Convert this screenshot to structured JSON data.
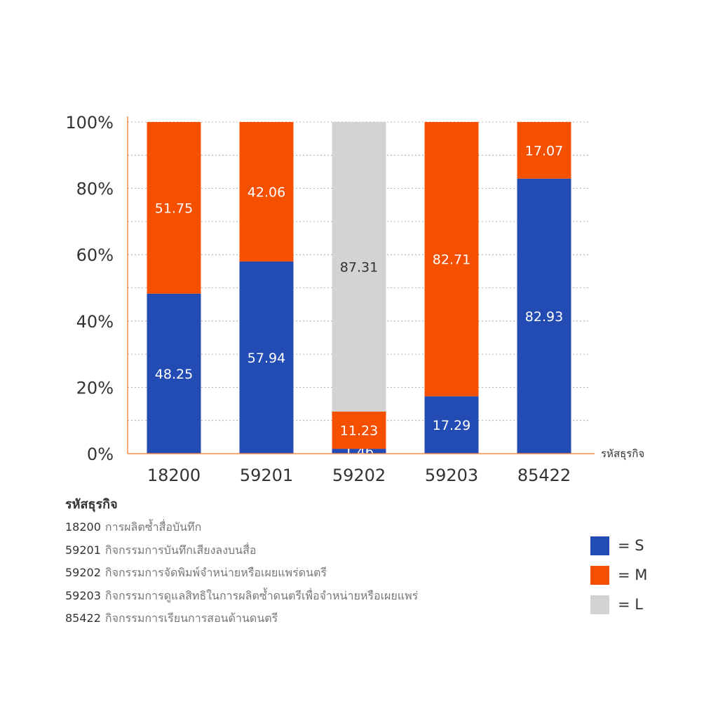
{
  "chart_data": {
    "type": "bar",
    "stacked": true,
    "categories": [
      "18200",
      "59201",
      "59202",
      "59203",
      "85422"
    ],
    "series": [
      {
        "name": "S",
        "color": "#234BB4",
        "label_color": "#ffffff",
        "values": [
          48.25,
          57.94,
          1.46,
          17.29,
          82.93
        ]
      },
      {
        "name": "M",
        "color": "#F55000",
        "label_color": "#ffffff",
        "values": [
          51.75,
          42.06,
          11.23,
          82.71,
          17.07
        ]
      },
      {
        "name": "L",
        "color": "#D3D3D4",
        "label_color": "#333333",
        "values": [
          null,
          null,
          87.31,
          null,
          null
        ]
      }
    ],
    "xlabel": "รหัสธุรกิจ",
    "ylim": [
      0,
      100
    ],
    "yticks": [
      "0%",
      "20%",
      "40%",
      "60%",
      "80%",
      "100%"
    ],
    "grid": true,
    "legend_position": "bottom-right"
  },
  "legend": [
    {
      "text": "= S",
      "color": "#234BB4"
    },
    {
      "text": "= M",
      "color": "#F55000"
    },
    {
      "text": "= L",
      "color": "#D3D3D4"
    }
  ],
  "codes": {
    "heading": "รหัสธุรกิจ",
    "items": [
      {
        "code": "18200",
        "desc": "การผลิตซ้ำสื่อบันทึก"
      },
      {
        "code": "59201",
        "desc": "กิจกรรมการบันทึกเสียงลงบนสื่อ"
      },
      {
        "code": "59202",
        "desc": "กิจกรรมการจัดพิมพ์จำหน่ายหรือเผยแพร่ดนตรี"
      },
      {
        "code": "59203",
        "desc": "กิจกรรมการดูแลสิทธิในการผลิตซ้ำดนตรีเพื่อจำหน่ายหรือเผยแพร่"
      },
      {
        "code": "85422",
        "desc": "กิจกรรมการเรียนการสอนด้านดนตรี"
      }
    ]
  }
}
